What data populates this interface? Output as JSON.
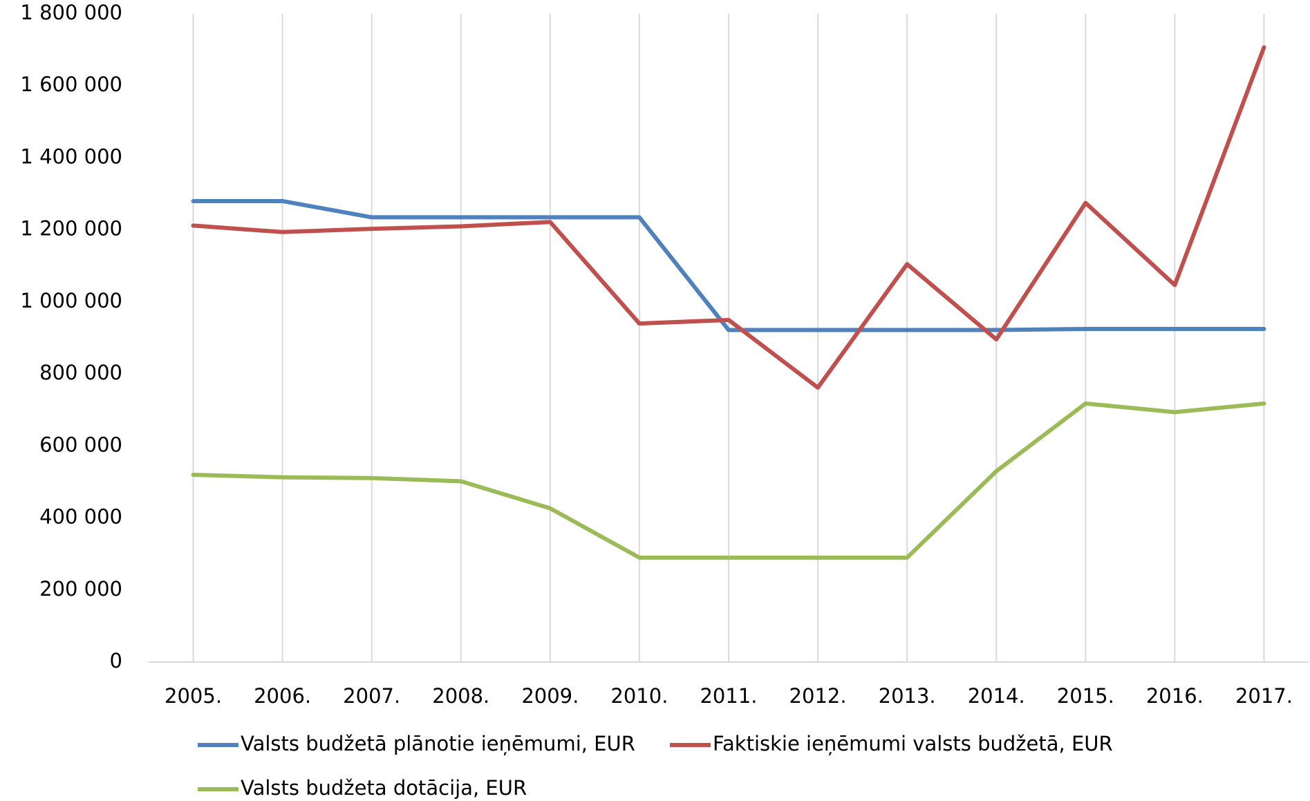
{
  "chart_data": {
    "type": "line",
    "categories": [
      "2005.",
      "2006.",
      "2007.",
      "2008.",
      "2009.",
      "2010.",
      "2011.",
      "2012.",
      "2013.",
      "2014.",
      "2015.",
      "2016.",
      "2017."
    ],
    "series": [
      {
        "name": "Valsts budžetā plānotie ieņēmumi, EUR",
        "color": "#4f81bd",
        "values": [
          1280000,
          1280000,
          1235000,
          1235000,
          1235000,
          1235000,
          922000,
          922000,
          922000,
          922000,
          925000,
          925000,
          925000
        ]
      },
      {
        "name": "Faktiskie ieņēmumi valsts budžetā, EUR",
        "color": "#c0504d",
        "values": [
          1212000,
          1194000,
          1203000,
          1210000,
          1222000,
          940000,
          950000,
          762000,
          1105000,
          896000,
          1275000,
          1047000,
          1707000
        ]
      },
      {
        "name": "Valsts budžeta dotācija, EUR",
        "color": "#9bbb59",
        "values": [
          520000,
          513000,
          511000,
          502000,
          427000,
          290000,
          290000,
          290000,
          290000,
          530000,
          718000,
          694000,
          718000
        ]
      }
    ],
    "ylim": [
      0,
      1800000
    ],
    "yticks": [
      0,
      {
        "value": 200000,
        "label": "200 000"
      },
      {
        "value": 400000,
        "label": "400 000"
      },
      {
        "value": 600000,
        "label": "600 000"
      },
      {
        "value": 800000,
        "label": "800 000"
      },
      {
        "value": 1000000,
        "label": "1 000 000"
      },
      {
        "value": 1200000,
        "label": "1 200 000"
      },
      {
        "value": 1400000,
        "label": "1 400 000"
      },
      {
        "value": 1600000,
        "label": "1 600 000"
      },
      {
        "value": 1800000,
        "label": "1 800 000"
      }
    ],
    "grid": true
  }
}
